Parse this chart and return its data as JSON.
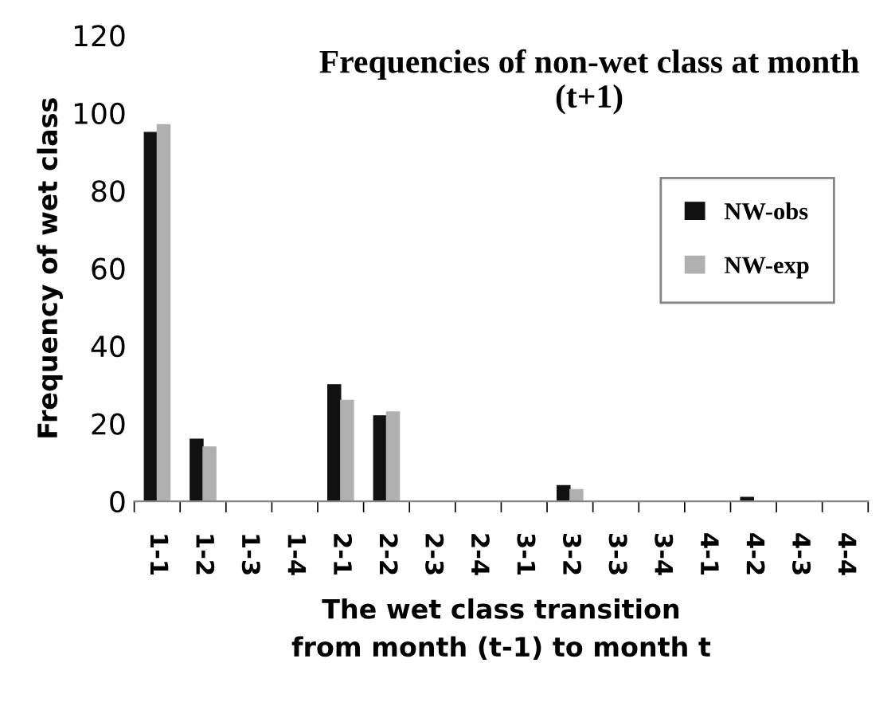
{
  "chart_data": {
    "type": "bar",
    "title": "Frequencies of non-wet class at month (t+1)",
    "xlabel": "The wet class transition\nfrom month (t-1) to month t",
    "ylabel": "Frequency of wet class",
    "categories": [
      "1-1",
      "1-2",
      "1-3",
      "1-4",
      "2-1",
      "2-2",
      "2-3",
      "2-4",
      "3-1",
      "3-2",
      "3-3",
      "3-4",
      "4-1",
      "4-2",
      "4-3",
      "4-4"
    ],
    "series": [
      {
        "name": "NW-obs",
        "color": "#111111",
        "values": [
          95,
          16,
          0,
          0,
          30,
          22,
          0,
          0,
          0,
          4,
          0,
          0,
          0,
          1,
          0,
          0
        ]
      },
      {
        "name": "NW-exp",
        "color": "#b0b0b0",
        "values": [
          97,
          14,
          0,
          0,
          26,
          23,
          0,
          0,
          0,
          3,
          0,
          0,
          0,
          0,
          0,
          0
        ]
      }
    ],
    "ylim": [
      0,
      120
    ],
    "yticks": [
      0,
      20,
      40,
      60,
      80,
      100,
      120
    ],
    "grid": false,
    "legend": "top right"
  }
}
